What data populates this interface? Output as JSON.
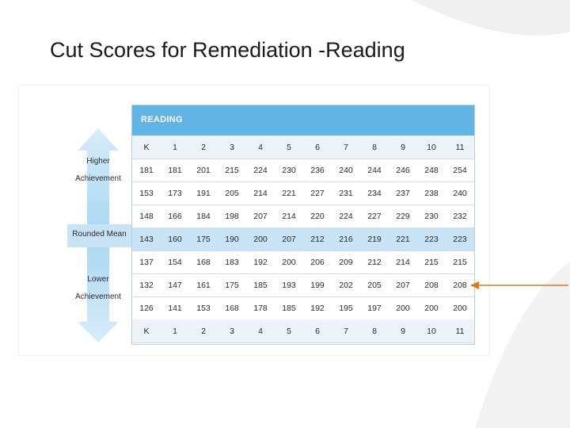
{
  "slide": {
    "title": "Cut Scores for Remediation -Reading"
  },
  "figure": {
    "table_title": "READING",
    "higher_label": "Higher Achievement",
    "higher_line1": "Higher",
    "higher_line2": "Achievement",
    "lower_line1": "Lower",
    "lower_line2": "Achievement",
    "mean_label": "Rounded Mean",
    "grades": [
      "K",
      "1",
      "2",
      "3",
      "4",
      "5",
      "6",
      "7",
      "8",
      "9",
      "10",
      "11"
    ],
    "rows": [
      [
        "181",
        "181",
        "201",
        "215",
        "224",
        "230",
        "236",
        "240",
        "244",
        "246",
        "248",
        "254"
      ],
      [
        "153",
        "173",
        "191",
        "205",
        "214",
        "221",
        "227",
        "231",
        "234",
        "237",
        "238",
        "240"
      ],
      [
        "148",
        "166",
        "184",
        "198",
        "207",
        "214",
        "220",
        "224",
        "227",
        "229",
        "230",
        "232"
      ],
      [
        "143",
        "160",
        "175",
        "190",
        "200",
        "207",
        "212",
        "216",
        "219",
        "221",
        "223",
        "223"
      ],
      [
        "137",
        "154",
        "168",
        "183",
        "192",
        "200",
        "206",
        "209",
        "212",
        "214",
        "215",
        "215"
      ],
      [
        "132",
        "147",
        "161",
        "175",
        "185",
        "193",
        "199",
        "202",
        "205",
        "207",
        "208",
        "208"
      ],
      [
        "126",
        "141",
        "153",
        "168",
        "178",
        "185",
        "192",
        "195",
        "197",
        "200",
        "200",
        "200"
      ]
    ],
    "mean_row_index": 3,
    "highlighted_row_index": 5,
    "colors": {
      "header_band": "#62b3e6",
      "mean_band": "#c8e3f5",
      "side_arrow": "#9fd0f0",
      "pointer_arrow": "#e07b12"
    }
  }
}
